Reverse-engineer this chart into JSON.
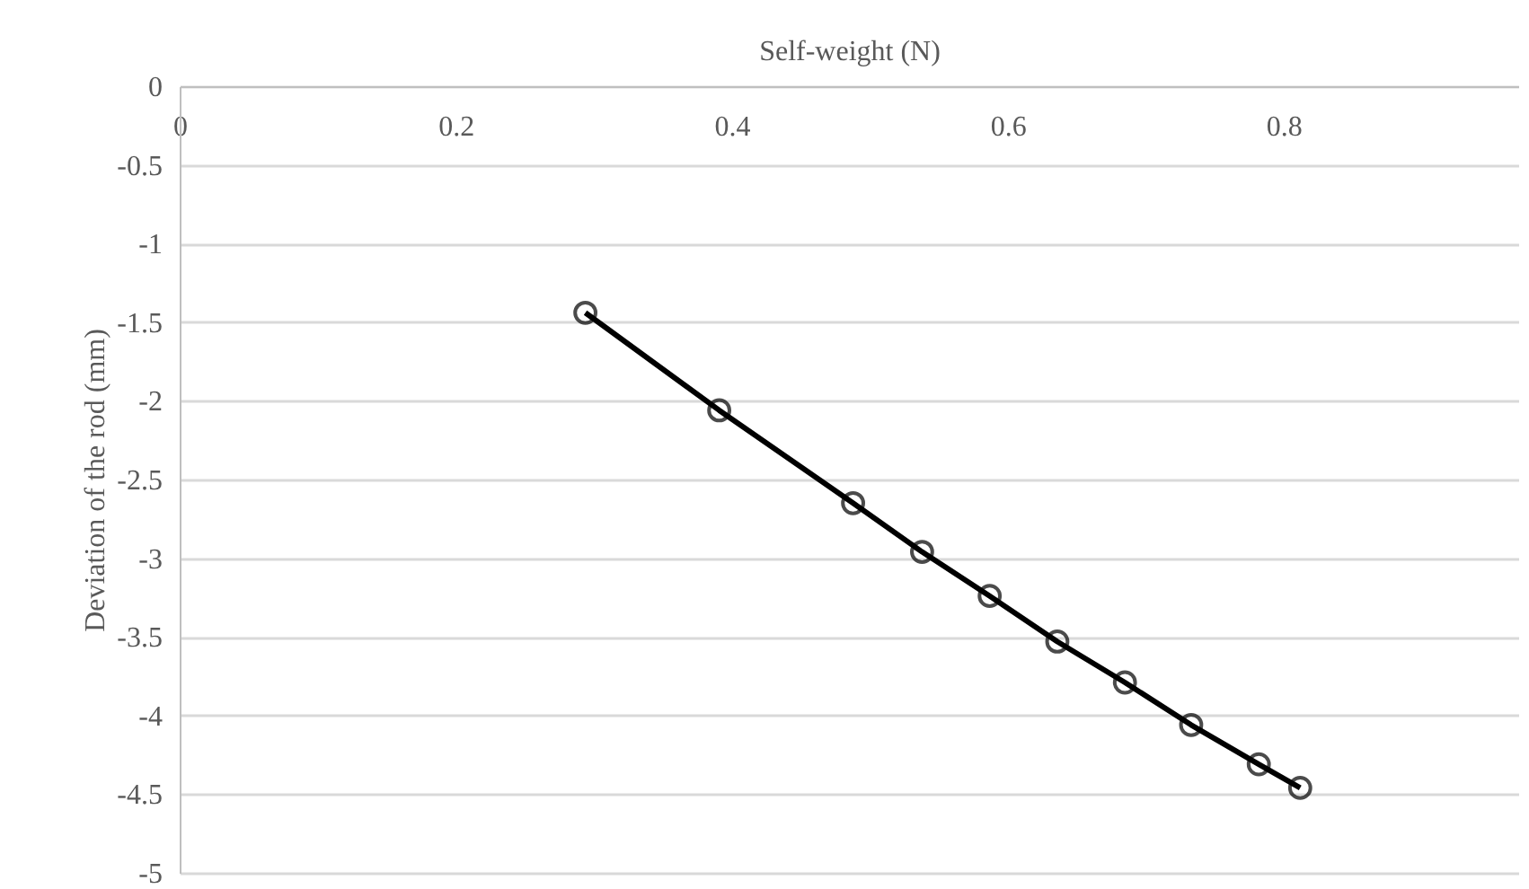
{
  "chart_data": {
    "type": "line",
    "title": "Self-weight (N)",
    "ylabel": "Deviation of the rod (mm)",
    "x": [
      0.294,
      0.391,
      0.488,
      0.538,
      0.587,
      0.636,
      0.685,
      0.733,
      0.782,
      0.812
    ],
    "series": [
      {
        "color": "#000000",
        "values": [
          -1.44,
          -2.06,
          -2.65,
          -2.96,
          -3.24,
          -3.53,
          -3.79,
          -4.06,
          -4.31,
          -4.46
        ]
      }
    ],
    "xlim": [
      0,
      0.97
    ],
    "xticks": [
      0,
      0.2,
      0.4,
      0.6,
      0.8
    ],
    "ylim": [
      -5,
      0
    ],
    "yticks": [
      0,
      -0.5,
      -1,
      -1.5,
      -2,
      -2.5,
      -3,
      -3.5,
      -4,
      -4.5,
      -5
    ],
    "grid": "y",
    "marker": "circle",
    "line_style": "solid"
  }
}
